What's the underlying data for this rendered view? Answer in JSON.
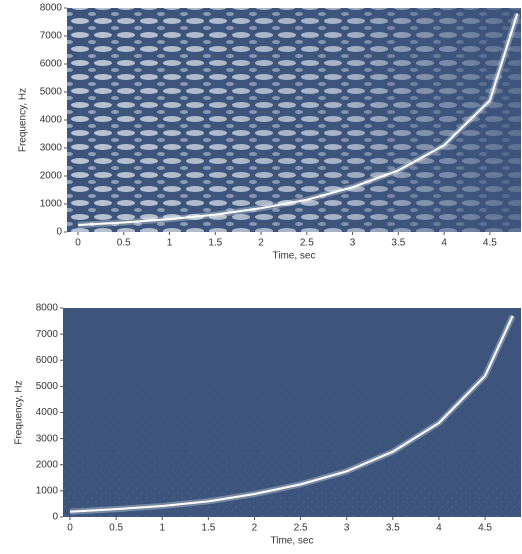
{
  "chart_data": [
    {
      "type": "spectrogram",
      "x_label": "Time, sec",
      "y_label": "Frequency, Hz",
      "xlim": [
        -0.12,
        4.84
      ],
      "ylim": [
        0,
        8000
      ],
      "xticks": [
        0,
        0.5,
        1,
        1.5,
        2,
        2.5,
        3,
        3.5,
        4,
        4.5
      ],
      "yticks": [
        0,
        1000,
        2000,
        3000,
        4000,
        5000,
        6000,
        7000,
        8000
      ],
      "background_color": "#3d557c",
      "series": [
        {
          "color": "#ffffff",
          "x": [
            0,
            0.5,
            1,
            1.5,
            2,
            2.5,
            3,
            3.5,
            4,
            4.5,
            4.8
          ],
          "values": [
            250,
            340,
            460,
            620,
            850,
            1150,
            1600,
            2200,
            3100,
            4700,
            7800
          ]
        }
      ]
    },
    {
      "type": "spectrogram",
      "x_label": "Time, sec",
      "y_label": "Frequency, Hz",
      "xlim": [
        -0.076,
        4.89
      ],
      "ylim": [
        0,
        8000
      ],
      "xticks": [
        0,
        0.5,
        1,
        1.5,
        2,
        2.5,
        3,
        3.5,
        4,
        4.5
      ],
      "yticks": [
        0,
        1000,
        2000,
        3000,
        4000,
        5000,
        6000,
        7000,
        8000
      ],
      "background_color": "#3d557c",
      "series": [
        {
          "color": "#ffffff",
          "x": [
            0,
            0.5,
            1,
            1.5,
            2,
            2.5,
            3,
            3.5,
            4,
            4.5,
            4.8
          ],
          "values": [
            200,
            300,
            420,
            600,
            880,
            1250,
            1750,
            2500,
            3600,
            5400,
            7700
          ]
        }
      ]
    }
  ]
}
